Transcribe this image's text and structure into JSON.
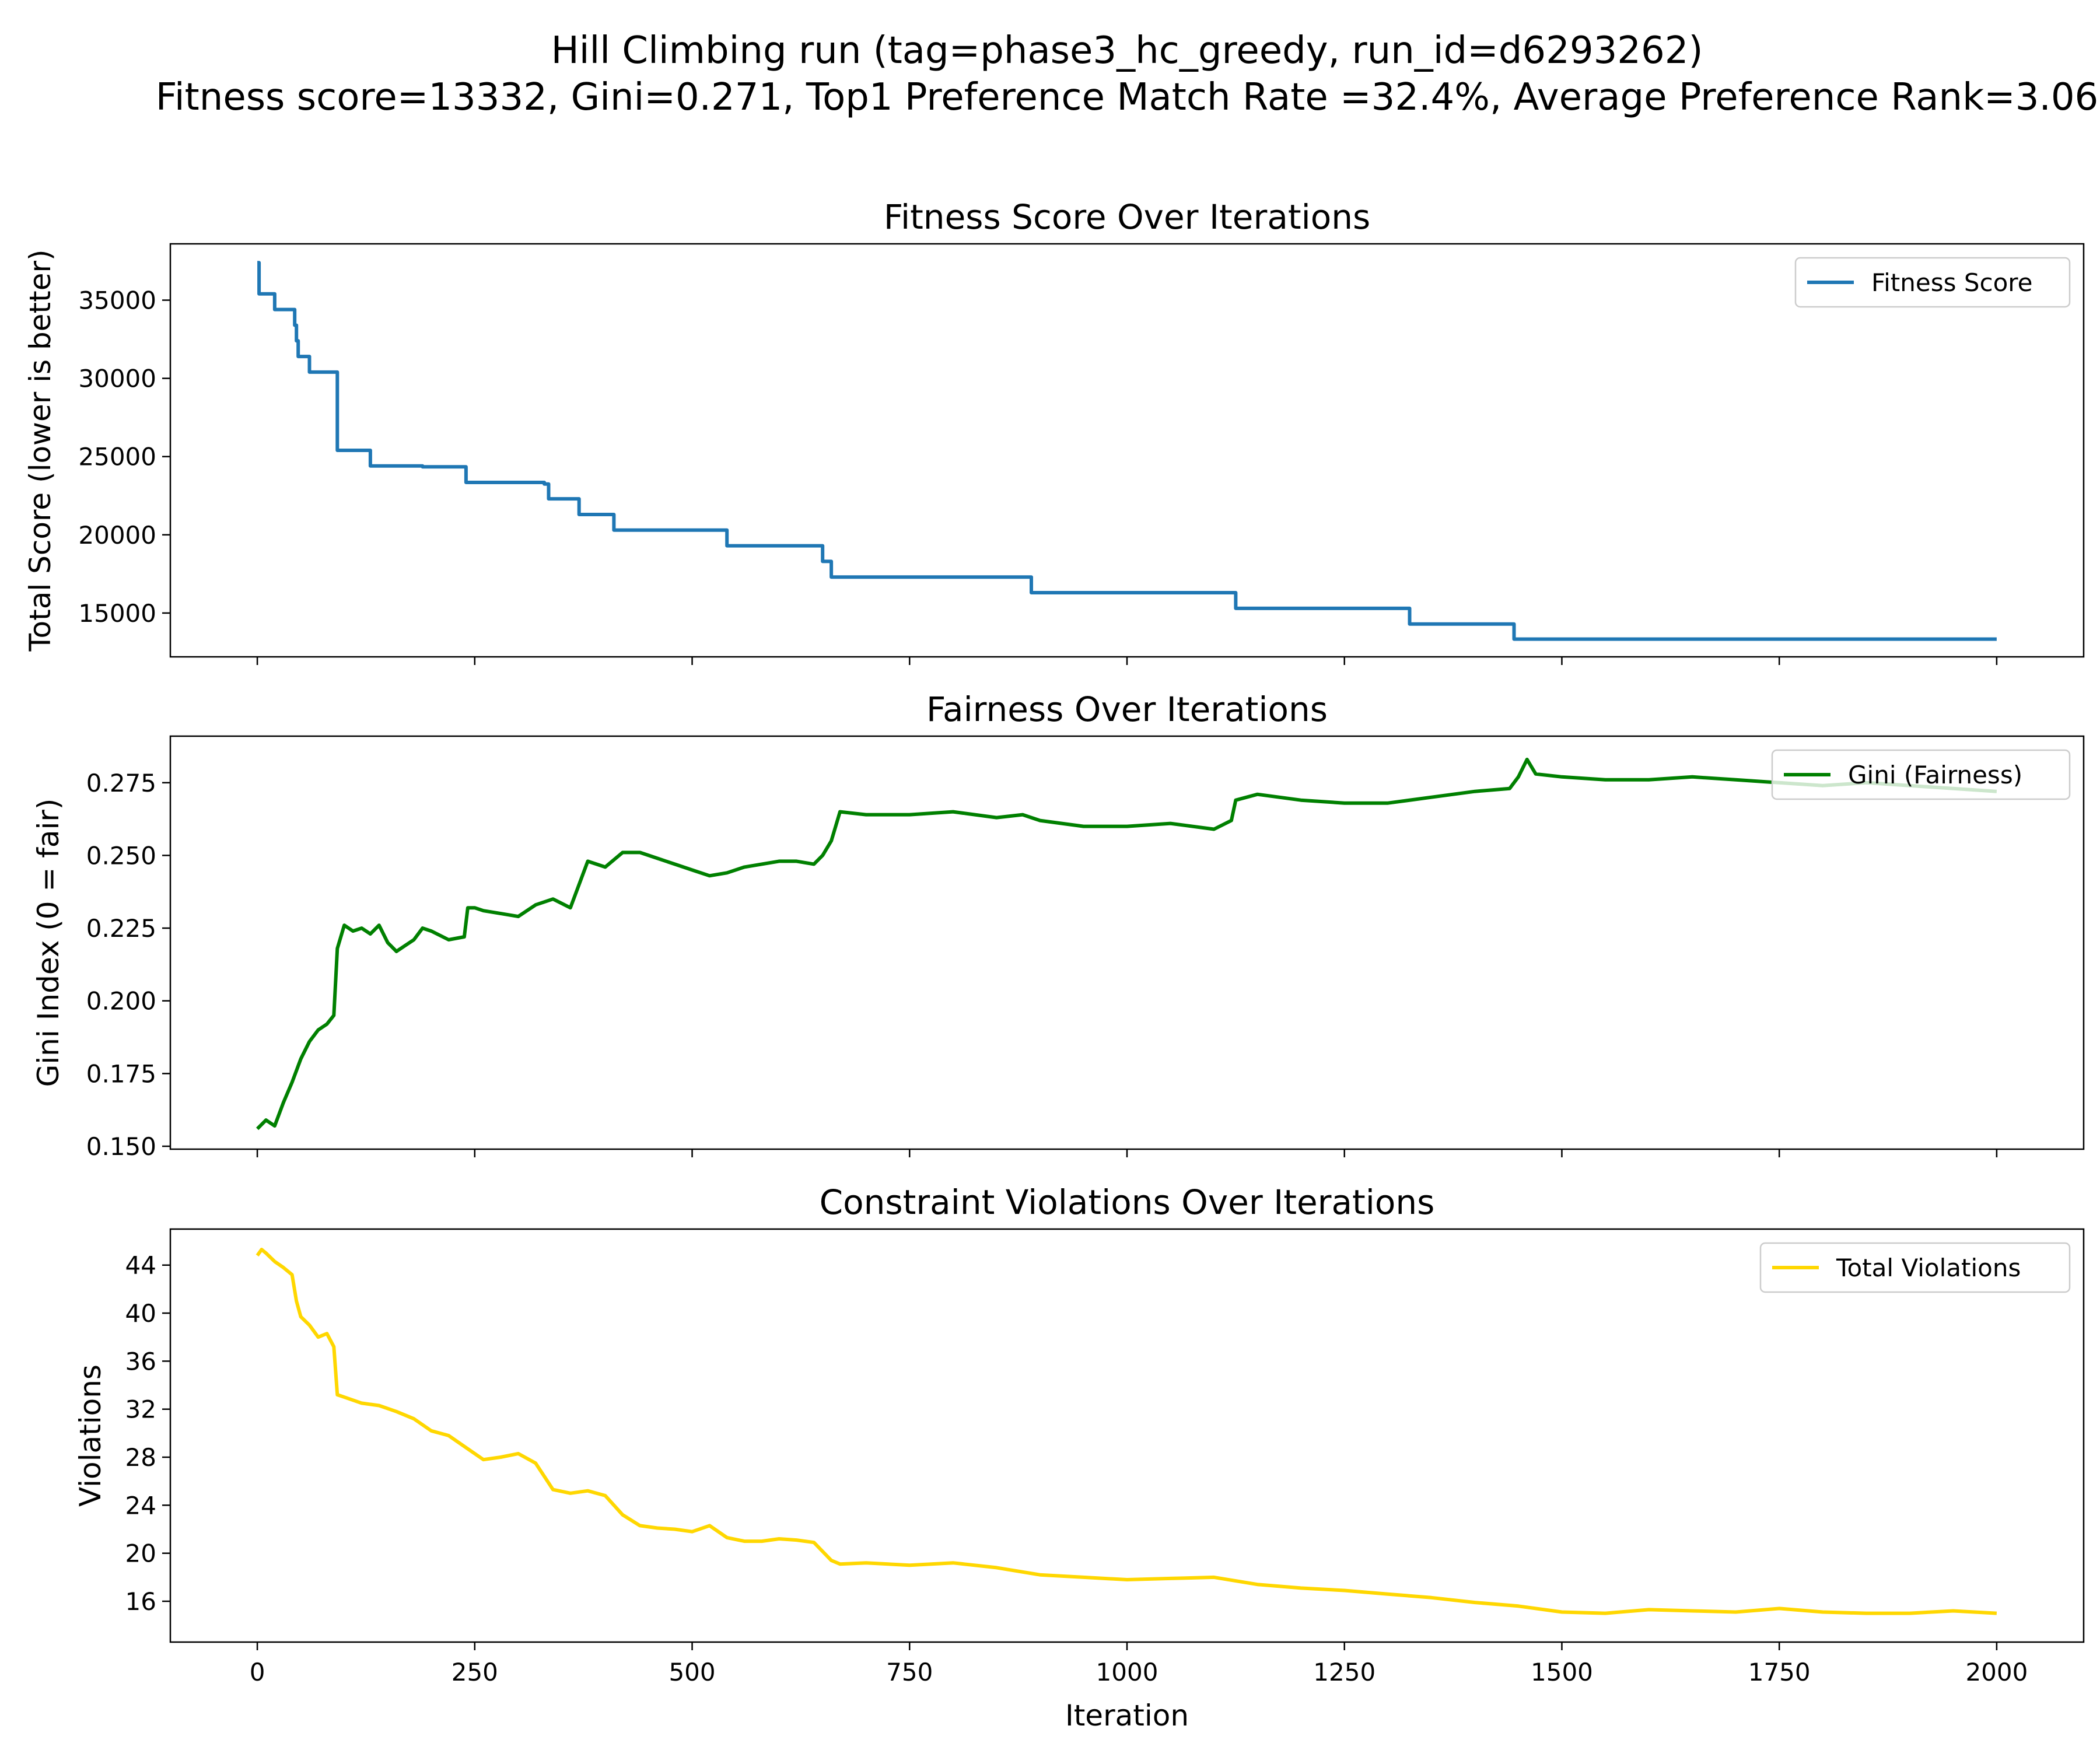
{
  "figure": {
    "title_line1": "Hill Climbing run (tag=phase3_hc_greedy, run_id=d6293262)",
    "title_line2": "Fitness score=13332, Gini=0.271, Top1 Preference Match Rate =32.4%, Average Preference Rank=3.06",
    "xlabel": "Iteration"
  },
  "chart_data": [
    {
      "type": "line",
      "title": "Fitness Score Over Iterations",
      "xlabel": "",
      "ylabel": "Total Score (lower is better)",
      "xlim": [
        -100,
        2100
      ],
      "ylim": [
        12200,
        38600
      ],
      "xticks": [
        0,
        250,
        500,
        750,
        1000,
        1250,
        1500,
        1750,
        2000
      ],
      "xtick_labels_visible": false,
      "yticks": [
        15000,
        20000,
        25000,
        30000,
        35000
      ],
      "ytick_labels": [
        "15000",
        "20000",
        "25000",
        "30000",
        "35000"
      ],
      "grid": false,
      "legend_position": "top-right",
      "step": true,
      "series": [
        {
          "name": "Fitness Score",
          "color": "#1f77b4",
          "x": [
            0,
            2,
            20,
            43,
            45,
            47,
            60,
            90,
            92,
            130,
            135,
            190,
            240,
            330,
            335,
            370,
            410,
            540,
            650,
            660,
            700,
            890,
            1125,
            1325,
            1445,
            2000
          ],
          "y": [
            37400,
            35400,
            34400,
            33400,
            32400,
            31400,
            30400,
            30400,
            25400,
            24400,
            24400,
            24350,
            23350,
            23250,
            22300,
            21300,
            20300,
            19300,
            18300,
            17300,
            17300,
            16300,
            15300,
            14300,
            13332,
            13332
          ]
        }
      ]
    },
    {
      "type": "line",
      "title": "Fairness Over Iterations",
      "xlabel": "",
      "ylabel": "Gini Index (0 = fair)",
      "xlim": [
        -100,
        2100
      ],
      "ylim": [
        0.149,
        0.291
      ],
      "xticks": [
        0,
        250,
        500,
        750,
        1000,
        1250,
        1500,
        1750,
        2000
      ],
      "xtick_labels_visible": false,
      "yticks": [
        0.15,
        0.175,
        0.2,
        0.225,
        0.25,
        0.275
      ],
      "ytick_labels": [
        "0.150",
        "0.175",
        "0.200",
        "0.225",
        "0.250",
        "0.275"
      ],
      "grid": false,
      "legend_position": "top-right",
      "series": [
        {
          "name": "Gini (Fairness)",
          "color": "#008000",
          "x": [
            0,
            10,
            20,
            30,
            40,
            50,
            60,
            70,
            80,
            88,
            92,
            100,
            110,
            120,
            130,
            140,
            150,
            160,
            170,
            180,
            190,
            200,
            220,
            238,
            242,
            250,
            260,
            280,
            300,
            320,
            340,
            360,
            370,
            380,
            400,
            420,
            440,
            460,
            480,
            500,
            520,
            540,
            560,
            580,
            600,
            620,
            640,
            650,
            660,
            670,
            700,
            750,
            800,
            850,
            880,
            900,
            950,
            1000,
            1050,
            1100,
            1120,
            1125,
            1150,
            1200,
            1250,
            1300,
            1350,
            1400,
            1440,
            1450,
            1460,
            1470,
            1500,
            1550,
            1600,
            1650,
            1700,
            1750,
            1800,
            1850,
            1900,
            1950,
            2000
          ],
          "y": [
            0.156,
            0.159,
            0.157,
            0.165,
            0.172,
            0.18,
            0.186,
            0.19,
            0.192,
            0.195,
            0.218,
            0.226,
            0.224,
            0.225,
            0.223,
            0.226,
            0.22,
            0.217,
            0.219,
            0.221,
            0.225,
            0.224,
            0.221,
            0.222,
            0.232,
            0.232,
            0.231,
            0.23,
            0.229,
            0.233,
            0.235,
            0.232,
            0.24,
            0.248,
            0.246,
            0.251,
            0.251,
            0.249,
            0.247,
            0.245,
            0.243,
            0.244,
            0.246,
            0.247,
            0.248,
            0.248,
            0.247,
            0.25,
            0.255,
            0.265,
            0.264,
            0.264,
            0.265,
            0.263,
            0.264,
            0.262,
            0.26,
            0.26,
            0.261,
            0.259,
            0.262,
            0.269,
            0.271,
            0.269,
            0.268,
            0.268,
            0.27,
            0.272,
            0.273,
            0.277,
            0.283,
            0.278,
            0.277,
            0.276,
            0.276,
            0.277,
            0.276,
            0.275,
            0.274,
            0.275,
            0.274,
            0.273,
            0.272
          ]
        }
      ]
    },
    {
      "type": "line",
      "title": "Constraint Violations Over Iterations",
      "xlabel": "Iteration",
      "ylabel": "Violations",
      "xlim": [
        -100,
        2100
      ],
      "ylim": [
        12.6,
        47
      ],
      "xticks": [
        0,
        250,
        500,
        750,
        1000,
        1250,
        1500,
        1750,
        2000
      ],
      "xtick_labels_visible": true,
      "xtick_labels": [
        "0",
        "250",
        "500",
        "750",
        "1000",
        "1250",
        "1500",
        "1750",
        "2000"
      ],
      "yticks": [
        16,
        20,
        24,
        28,
        32,
        36,
        40,
        44
      ],
      "ytick_labels": [
        "16",
        "20",
        "24",
        "28",
        "32",
        "36",
        "40",
        "44"
      ],
      "grid": false,
      "legend_position": "top-right",
      "series": [
        {
          "name": "Total Violations",
          "color": "#ffd700",
          "x": [
            0,
            5,
            10,
            20,
            30,
            40,
            45,
            50,
            60,
            70,
            80,
            88,
            92,
            100,
            120,
            140,
            160,
            180,
            200,
            220,
            240,
            260,
            280,
            300,
            320,
            340,
            360,
            380,
            400,
            420,
            440,
            460,
            480,
            500,
            520,
            540,
            560,
            580,
            600,
            620,
            640,
            660,
            670,
            700,
            750,
            800,
            850,
            900,
            950,
            1000,
            1050,
            1100,
            1150,
            1200,
            1250,
            1300,
            1350,
            1400,
            1450,
            1500,
            1550,
            1600,
            1650,
            1700,
            1750,
            1800,
            1850,
            1900,
            1950,
            2000
          ],
          "y": [
            44.8,
            45.3,
            45.0,
            44.3,
            43.8,
            43.2,
            41.0,
            39.7,
            39.0,
            38.0,
            38.3,
            37.2,
            33.2,
            33.0,
            32.5,
            32.3,
            31.8,
            31.2,
            30.2,
            29.8,
            28.8,
            27.8,
            28.0,
            28.3,
            27.5,
            25.3,
            25.0,
            25.2,
            24.8,
            23.2,
            22.3,
            22.1,
            22.0,
            21.8,
            22.3,
            21.3,
            21.0,
            21.0,
            21.2,
            21.1,
            20.9,
            19.4,
            19.1,
            19.2,
            19.0,
            19.2,
            18.8,
            18.2,
            18.0,
            17.8,
            17.9,
            18.0,
            17.4,
            17.1,
            16.9,
            16.6,
            16.3,
            15.9,
            15.6,
            15.1,
            15.0,
            15.3,
            15.2,
            15.1,
            15.4,
            15.1,
            15.0,
            15.0,
            15.2,
            15.0
          ]
        }
      ]
    }
  ]
}
